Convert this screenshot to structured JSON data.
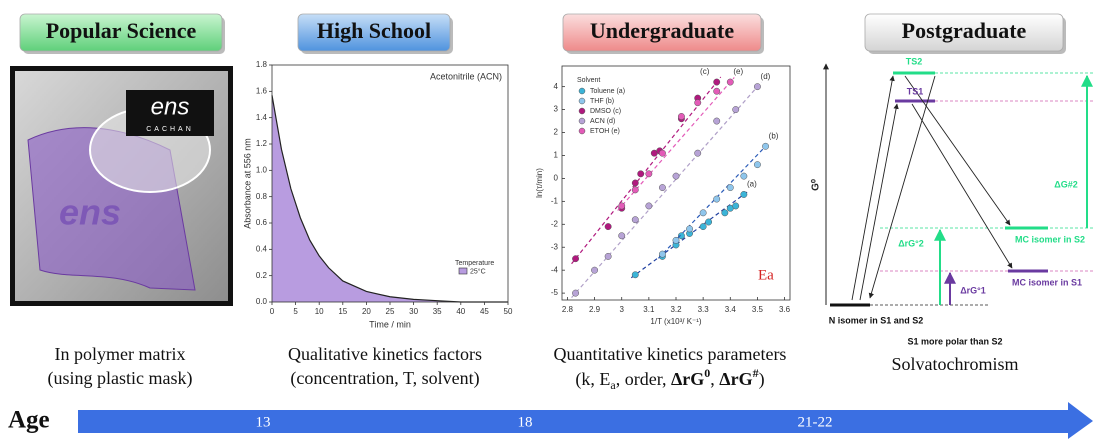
{
  "stages": [
    {
      "title": "Popular Science",
      "caption": [
        "In polymer matrix",
        "(using plastic mask)"
      ]
    },
    {
      "title": "High School",
      "caption": [
        "Qualitative kinetics factors",
        "(concentration, T, solvent)"
      ]
    },
    {
      "title": "Undergraduate",
      "caption": [
        "Quantitative kinetics parameters",
        "(k, E",
        "a",
        ", order, ",
        "ΔrG",
        "0",
        ", ",
        "ΔrG",
        "#",
        ")"
      ]
    },
    {
      "title": "Postgraduate",
      "caption": [
        "Solvatochromism"
      ]
    }
  ],
  "photo": {
    "logo": [
      "ens",
      "CACHAN"
    ]
  },
  "kinetics_chart": {
    "type": "area",
    "annotation": "Acetonitrile (ACN)",
    "x_label": "Time / min",
    "y_label": "Absorbance at 556 nm",
    "legend_title": "Temperature",
    "series_name": "25°C",
    "color": "#b89ce0",
    "x": [
      0,
      2,
      4,
      6,
      8,
      10,
      12,
      15,
      20,
      25,
      30,
      35,
      40,
      45,
      50
    ],
    "values": [
      1.57,
      1.16,
      0.86,
      0.64,
      0.47,
      0.35,
      0.26,
      0.16,
      0.08,
      0.04,
      0.02,
      0.01,
      0.0,
      0.0,
      0.0
    ],
    "xlim": [
      0,
      50
    ],
    "ylim": [
      0,
      1.8
    ],
    "xticks": [
      0,
      5,
      10,
      15,
      20,
      25,
      30,
      35,
      40,
      45,
      50
    ],
    "yticks": [
      {
        "value": 0,
        "label": "0.0"
      },
      0.2,
      0.4,
      0.6,
      0.8,
      {
        "value": 1,
        "label": "1.0"
      },
      1.2,
      1.4,
      1.6,
      1.8
    ]
  },
  "arrhenius_chart": {
    "type": "scatter",
    "legend_title": "Solvent",
    "x_label": "1/T (x10³/ K⁻¹)",
    "y_label": "ln(τ/min)",
    "annotation": "Ea",
    "xlim": [
      2.78,
      3.62
    ],
    "ylim": [
      -5.3,
      4.9
    ],
    "xticks": [
      2.8,
      2.9,
      3,
      3.1,
      3.2,
      3.3,
      3.4,
      3.5,
      3.6
    ],
    "yticks": [
      -5,
      -4,
      -3,
      -2,
      -1,
      0,
      1,
      2,
      3,
      4
    ],
    "series": [
      {
        "name": "Toluene (a)",
        "end_label": "(a)",
        "color": "#3bb4d8",
        "line_color": "#1f3fa0",
        "x": [
          3.05,
          3.15,
          3.2,
          3.22,
          3.25,
          3.3,
          3.32,
          3.38,
          3.4,
          3.42,
          3.45
        ],
        "values": [
          -4.2,
          -3.4,
          -2.9,
          -2.5,
          -2.4,
          -2.1,
          -1.9,
          -1.5,
          -1.3,
          -1.2,
          -0.7
        ]
      },
      {
        "name": "THF (b)",
        "end_label": "(b)",
        "color": "#8fc6ec",
        "line_color": "#2a5bb8",
        "x": [
          3.15,
          3.2,
          3.25,
          3.3,
          3.35,
          3.4,
          3.45,
          3.5,
          3.53
        ],
        "values": [
          -3.3,
          -2.7,
          -2.2,
          -1.5,
          -0.9,
          -0.4,
          0.1,
          0.6,
          1.4
        ]
      },
      {
        "name": "DMSO (c)",
        "end_label": "(c)",
        "color": "#b0197e",
        "line_color": "#b0197e",
        "x": [
          2.83,
          2.95,
          3.0,
          3.05,
          3.07,
          3.12,
          3.14,
          3.22,
          3.28,
          3.35
        ],
        "values": [
          -3.5,
          -2.1,
          -1.3,
          -0.2,
          0.2,
          1.1,
          1.2,
          2.6,
          3.5,
          4.2
        ]
      },
      {
        "name": "ACN (d)",
        "end_label": "(d)",
        "color": "#b7a3d6",
        "line_color": "#b0a0c8",
        "x": [
          2.83,
          2.9,
          2.95,
          3.0,
          3.05,
          3.1,
          3.15,
          3.2,
          3.28,
          3.35,
          3.42,
          3.5
        ],
        "values": [
          -5.0,
          -4.0,
          -3.4,
          -2.5,
          -1.8,
          -1.2,
          -0.4,
          0.1,
          1.1,
          2.5,
          3.0,
          4.0
        ]
      },
      {
        "name": "ETOH (e)",
        "end_label": "(e)",
        "color": "#e35bb8",
        "line_color": "#e35bb8",
        "x": [
          3.0,
          3.05,
          3.1,
          3.15,
          3.22,
          3.28,
          3.35,
          3.4
        ],
        "values": [
          -1.2,
          -0.5,
          0.2,
          1.1,
          2.7,
          3.3,
          3.8,
          4.2
        ]
      }
    ]
  },
  "energy_diagram": {
    "axis_label": "G⁰",
    "levels": {
      "ts2": "TS2",
      "ts1": "TS1",
      "mc_s2": "MC isomer in S2",
      "mc_s1": "MC isomer in S1",
      "n": "N isomer in S1 and S2"
    },
    "annotations": {
      "dg_r2": "ΔrG°2",
      "dg_r1": "ΔrG°1",
      "dg_act2": "ΔG#2"
    },
    "note": "S1 more polar than S2"
  },
  "age": {
    "label": "Age",
    "marks": [
      "13",
      "18",
      "21-22"
    ]
  }
}
